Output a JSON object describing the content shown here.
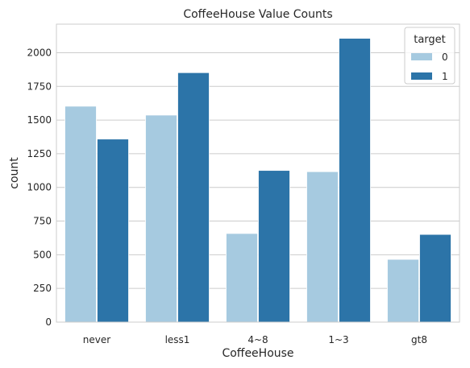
{
  "chart_data": {
    "type": "bar",
    "title": "CoffeeHouse Value Counts",
    "xlabel": "CoffeeHouse",
    "ylabel": "count",
    "categories": [
      "never",
      "less1",
      "4~8",
      "1~3",
      "gt8"
    ],
    "series": [
      {
        "name": "0",
        "color": "#a6cae0",
        "values": [
          1603,
          1537,
          658,
          1117,
          466
        ]
      },
      {
        "name": "1",
        "color": "#2c74a8",
        "values": [
          1359,
          1852,
          1126,
          2107,
          651
        ]
      }
    ],
    "ylim": [
      0,
      2212
    ],
    "yticks": [
      0,
      250,
      500,
      750,
      1000,
      1250,
      1500,
      1750,
      2000
    ],
    "grid": "horizontal",
    "legend": {
      "title": "target",
      "placement": "top-right"
    }
  }
}
